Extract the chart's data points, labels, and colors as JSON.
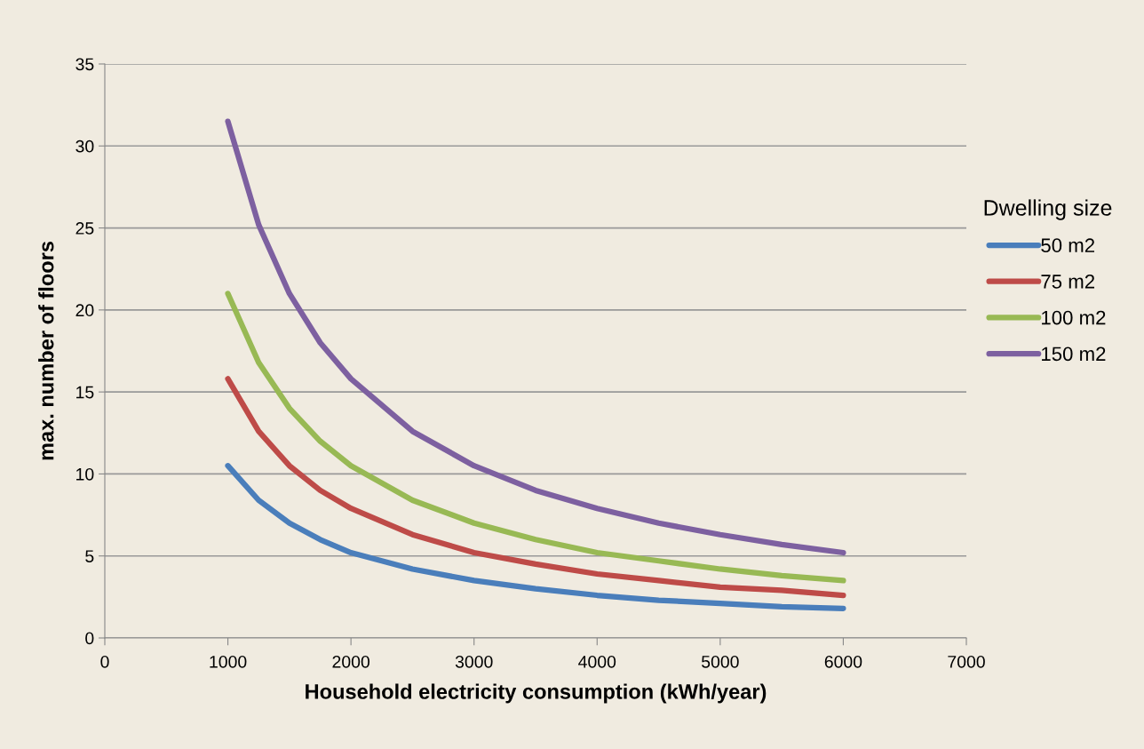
{
  "chart_data": {
    "type": "line",
    "xlabel": "Household electricity consumption (kWh/year)",
    "ylabel": "max. number of floors",
    "legend_title": "Dwelling size",
    "x": [
      1000,
      1250,
      1500,
      1750,
      2000,
      2500,
      3000,
      3500,
      4000,
      4500,
      5000,
      5500,
      6000
    ],
    "series": [
      {
        "name": "50 m2",
        "color": "#4a7ebb",
        "values": [
          10.5,
          8.4,
          7.0,
          6.0,
          5.2,
          4.2,
          3.5,
          3.0,
          2.6,
          2.3,
          2.1,
          1.9,
          1.8
        ]
      },
      {
        "name": "75 m2",
        "color": "#be4b48",
        "values": [
          15.8,
          12.6,
          10.5,
          9.0,
          7.9,
          6.3,
          5.2,
          4.5,
          3.9,
          3.5,
          3.1,
          2.9,
          2.6
        ]
      },
      {
        "name": "100 m2",
        "color": "#98b954",
        "values": [
          21.0,
          16.8,
          14.0,
          12.0,
          10.5,
          8.4,
          7.0,
          6.0,
          5.2,
          4.7,
          4.2,
          3.8,
          3.5
        ]
      },
      {
        "name": "150 m2",
        "color": "#7d60a0",
        "values": [
          31.5,
          25.2,
          21.0,
          18.0,
          15.8,
          12.6,
          10.5,
          9.0,
          7.9,
          7.0,
          6.3,
          5.7,
          5.2
        ]
      }
    ],
    "xlim": [
      0,
      7000
    ],
    "xticks": [
      0,
      1000,
      2000,
      3000,
      4000,
      5000,
      6000,
      7000
    ],
    "ylim": [
      0,
      35
    ],
    "yticks": [
      0,
      5,
      10,
      15,
      20,
      25,
      30,
      35
    ],
    "grid": "y",
    "legend": "right",
    "marker": "none",
    "line_style": "solid"
  }
}
